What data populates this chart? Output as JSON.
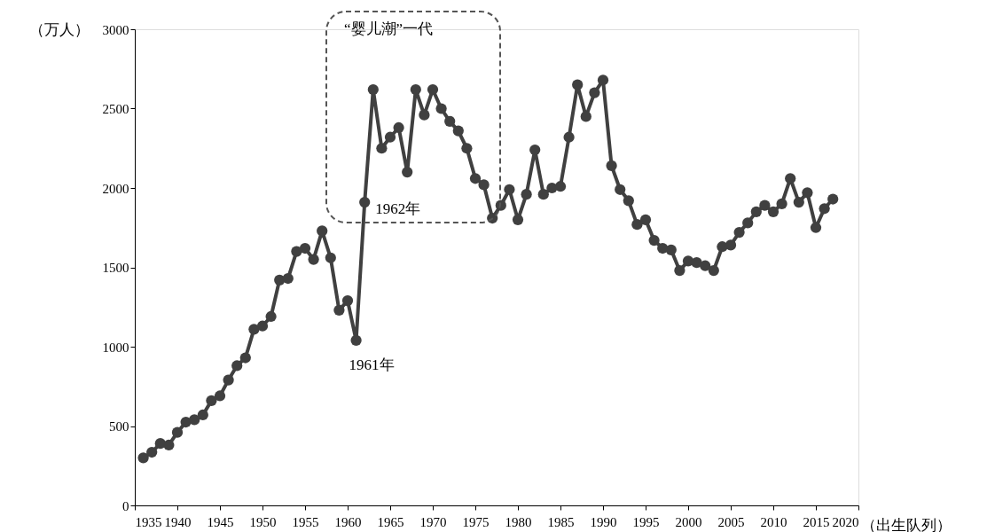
{
  "chart_data": {
    "type": "line",
    "xlabel": "（出生队列）",
    "ylabel": "（万人）",
    "x": [
      1936,
      1937,
      1938,
      1939,
      1940,
      1941,
      1942,
      1943,
      1944,
      1945,
      1946,
      1947,
      1948,
      1949,
      1950,
      1951,
      1952,
      1953,
      1954,
      1955,
      1956,
      1957,
      1958,
      1959,
      1960,
      1961,
      1962,
      1963,
      1964,
      1965,
      1966,
      1967,
      1968,
      1969,
      1970,
      1971,
      1972,
      1973,
      1974,
      1975,
      1976,
      1977,
      1978,
      1979,
      1980,
      1981,
      1982,
      1983,
      1984,
      1985,
      1986,
      1987,
      1988,
      1989,
      1990,
      1991,
      1992,
      1993,
      1994,
      1995,
      1996,
      1997,
      1998,
      1999,
      2000,
      2001,
      2002,
      2003,
      2004,
      2005,
      2006,
      2007,
      2008,
      2009,
      2010,
      2011,
      2012,
      2013,
      2014,
      2015,
      2016,
      2017
    ],
    "series": [
      {
        "color": "#404040",
        "values": [
          300,
          335,
          390,
          380,
          460,
          525,
          540,
          570,
          660,
          690,
          790,
          880,
          930,
          1110,
          1130,
          1190,
          1420,
          1430,
          1600,
          1620,
          1550,
          1730,
          1560,
          1230,
          1290,
          1040,
          1910,
          2620,
          2250,
          2320,
          2380,
          2100,
          2620,
          2460,
          2620,
          2500,
          2420,
          2360,
          2250,
          2060,
          2020,
          1810,
          1890,
          1990,
          1800,
          1960,
          2240,
          1960,
          2000,
          2010,
          2320,
          2650,
          2450,
          2600,
          2680,
          2140,
          1990,
          1920,
          1770,
          1800,
          1670,
          1620,
          1610,
          1480,
          1540,
          1530,
          1510,
          1480,
          1630,
          1640,
          1720,
          1780,
          1850,
          1890,
          1850,
          1900,
          2060,
          1910,
          1970,
          1750,
          1870,
          1930
        ]
      }
    ],
    "xlim": [
      1935,
      2020
    ],
    "xticks": [
      1935,
      1940,
      1945,
      1950,
      1955,
      1960,
      1965,
      1970,
      1975,
      1980,
      1985,
      1990,
      1995,
      2000,
      2005,
      2010,
      2015,
      2020
    ],
    "ylim": [
      0,
      3000
    ],
    "yticks": [
      0,
      500,
      1000,
      1500,
      2000,
      2500,
      3000
    ],
    "marker": "circle",
    "line_style": "solid",
    "grid": false,
    "annotations": [
      "“婴儿潮”一代",
      {
        "text": "1961年",
        "x": 1961,
        "y": 1040
      },
      {
        "text": "1962年",
        "x": 1962,
        "y": 1910
      }
    ]
  }
}
